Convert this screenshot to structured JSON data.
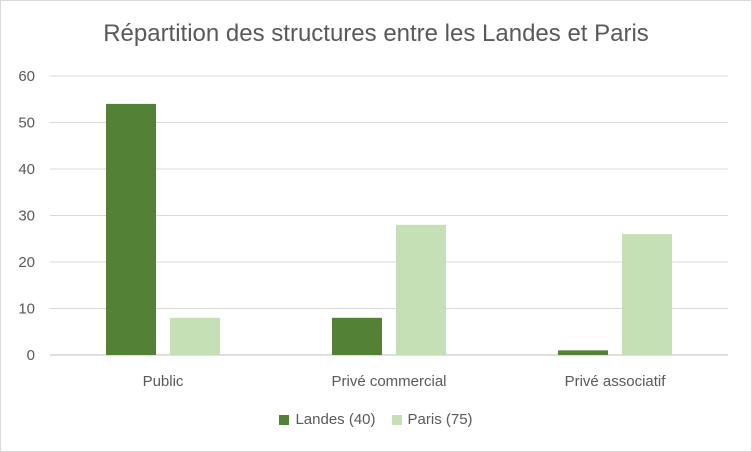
{
  "chart_data": {
    "type": "bar",
    "title": "Répartition des structures entre les Landes et Paris",
    "xlabel": "",
    "ylabel": "",
    "categories": [
      "Public",
      "Privé commercial",
      "Privé associatif"
    ],
    "series": [
      {
        "name": "Landes (40)",
        "color": "#538135",
        "values": [
          54,
          8,
          1
        ]
      },
      {
        "name": "Paris (75)",
        "color": "#c5e0b4",
        "values": [
          8,
          28,
          26
        ]
      }
    ],
    "ylim": [
      0,
      60
    ],
    "yticks": [
      "0",
      "10",
      "20",
      "30",
      "40",
      "50",
      "60"
    ],
    "grid": true,
    "legend_position": "bottom"
  }
}
